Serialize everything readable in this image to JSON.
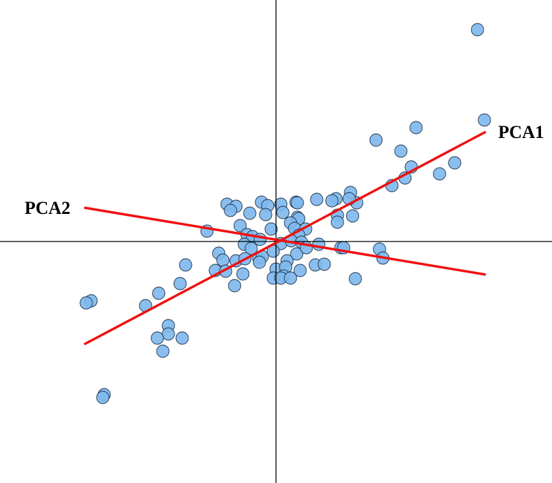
{
  "chart_data": {
    "type": "scatter",
    "title": "",
    "xlabel": "",
    "ylabel": "",
    "xlim": [
      -4,
      4
    ],
    "ylim": [
      -3.5,
      3.5
    ],
    "grid": false,
    "colors": {
      "point_fill": "#7fb8ee",
      "point_edge": "#1d2f44",
      "component_line": "#ee1111",
      "axes": "#000000"
    },
    "points": [
      {
        "x": 2.92,
        "y": 3.07
      },
      {
        "x": 3.02,
        "y": 1.76
      },
      {
        "x": 2.03,
        "y": 1.65
      },
      {
        "x": 1.45,
        "y": 1.47
      },
      {
        "x": 1.81,
        "y": 1.31
      },
      {
        "x": 2.59,
        "y": 1.14
      },
      {
        "x": 2.37,
        "y": 0.98
      },
      {
        "x": 1.96,
        "y": 1.08
      },
      {
        "x": 1.87,
        "y": 0.92
      },
      {
        "x": 1.68,
        "y": 0.81
      },
      {
        "x": 1.08,
        "y": 0.71
      },
      {
        "x": 0.87,
        "y": 0.62
      },
      {
        "x": 0.81,
        "y": 0.59
      },
      {
        "x": 1.17,
        "y": 0.56
      },
      {
        "x": 0.59,
        "y": 0.61
      },
      {
        "x": 1.06,
        "y": 0.62
      },
      {
        "x": 1.11,
        "y": 0.37
      },
      {
        "x": 0.89,
        "y": 0.38
      },
      {
        "x": 0.89,
        "y": 0.28
      },
      {
        "x": -0.71,
        "y": 0.54
      },
      {
        "x": -0.58,
        "y": 0.51
      },
      {
        "x": -0.66,
        "y": 0.45
      },
      {
        "x": -0.21,
        "y": 0.57
      },
      {
        "x": -0.12,
        "y": 0.52
      },
      {
        "x": 0.07,
        "y": 0.54
      },
      {
        "x": 0.29,
        "y": 0.57
      },
      {
        "x": 0.31,
        "y": 0.56
      },
      {
        "x": -0.38,
        "y": 0.41
      },
      {
        "x": -0.15,
        "y": 0.39
      },
      {
        "x": 0.1,
        "y": 0.42
      },
      {
        "x": 0.31,
        "y": 0.35
      },
      {
        "x": 0.33,
        "y": 0.33
      },
      {
        "x": -0.52,
        "y": 0.23
      },
      {
        "x": -0.07,
        "y": 0.18
      },
      {
        "x": 0.21,
        "y": 0.27
      },
      {
        "x": 0.27,
        "y": 0.19
      },
      {
        "x": 0.43,
        "y": 0.18
      },
      {
        "x": -1.0,
        "y": 0.15
      },
      {
        "x": -0.42,
        "y": 0.1
      },
      {
        "x": -0.34,
        "y": 0.07
      },
      {
        "x": -0.23,
        "y": 0.03
      },
      {
        "x": 0.33,
        "y": 0.09
      },
      {
        "x": -0.46,
        "y": -0.04
      },
      {
        "x": -0.36,
        "y": -0.1
      },
      {
        "x": 0.07,
        "y": -0.03
      },
      {
        "x": 0.22,
        "y": 0.01
      },
      {
        "x": 0.37,
        "y": -0.01
      },
      {
        "x": 0.62,
        "y": -0.04
      },
      {
        "x": 0.94,
        "y": -0.09
      },
      {
        "x": 0.98,
        "y": -0.09
      },
      {
        "x": 1.5,
        "y": -0.11
      },
      {
        "x": -0.83,
        "y": -0.17
      },
      {
        "x": -0.77,
        "y": -0.27
      },
      {
        "x": -0.25,
        "y": -0.24
      },
      {
        "x": -0.2,
        "y": -0.22
      },
      {
        "x": -0.04,
        "y": -0.14
      },
      {
        "x": 0.3,
        "y": -0.18
      },
      {
        "x": 0.44,
        "y": -0.09
      },
      {
        "x": 1.55,
        "y": -0.24
      },
      {
        "x": -1.31,
        "y": -0.34
      },
      {
        "x": -0.58,
        "y": -0.28
      },
      {
        "x": -0.45,
        "y": -0.25
      },
      {
        "x": -0.24,
        "y": -0.3
      },
      {
        "x": 0.16,
        "y": -0.28
      },
      {
        "x": 0.57,
        "y": -0.34
      },
      {
        "x": 0.7,
        "y": -0.33
      },
      {
        "x": -0.88,
        "y": -0.42
      },
      {
        "x": -0.73,
        "y": -0.43
      },
      {
        "x": -0.48,
        "y": -0.47
      },
      {
        "x": 0.0,
        "y": -0.4
      },
      {
        "x": 0.14,
        "y": -0.37
      },
      {
        "x": 0.35,
        "y": -0.42
      },
      {
        "x": 0.11,
        "y": -0.5
      },
      {
        "x": 1.15,
        "y": -0.54
      },
      {
        "x": -0.04,
        "y": -0.53
      },
      {
        "x": 0.07,
        "y": -0.53
      },
      {
        "x": 0.21,
        "y": -0.53
      },
      {
        "x": -1.39,
        "y": -0.61
      },
      {
        "x": -0.6,
        "y": -0.64
      },
      {
        "x": -1.7,
        "y": -0.75
      },
      {
        "x": -1.89,
        "y": -0.93
      },
      {
        "x": -2.68,
        "y": -0.86
      },
      {
        "x": -2.75,
        "y": -0.89
      },
      {
        "x": -1.56,
        "y": -1.22
      },
      {
        "x": -1.56,
        "y": -1.34
      },
      {
        "x": -1.72,
        "y": -1.4
      },
      {
        "x": -1.36,
        "y": -1.4
      },
      {
        "x": -1.64,
        "y": -1.59
      },
      {
        "x": -2.49,
        "y": -2.22
      },
      {
        "x": -2.51,
        "y": -2.26
      }
    ],
    "components": [
      {
        "name": "PCA1",
        "from": [
          -2.78,
          -1.49
        ],
        "to": [
          3.04,
          1.59
        ]
      },
      {
        "name": "PCA2",
        "from": [
          -2.78,
          0.49
        ],
        "to": [
          3.04,
          -0.48
        ]
      }
    ]
  }
}
